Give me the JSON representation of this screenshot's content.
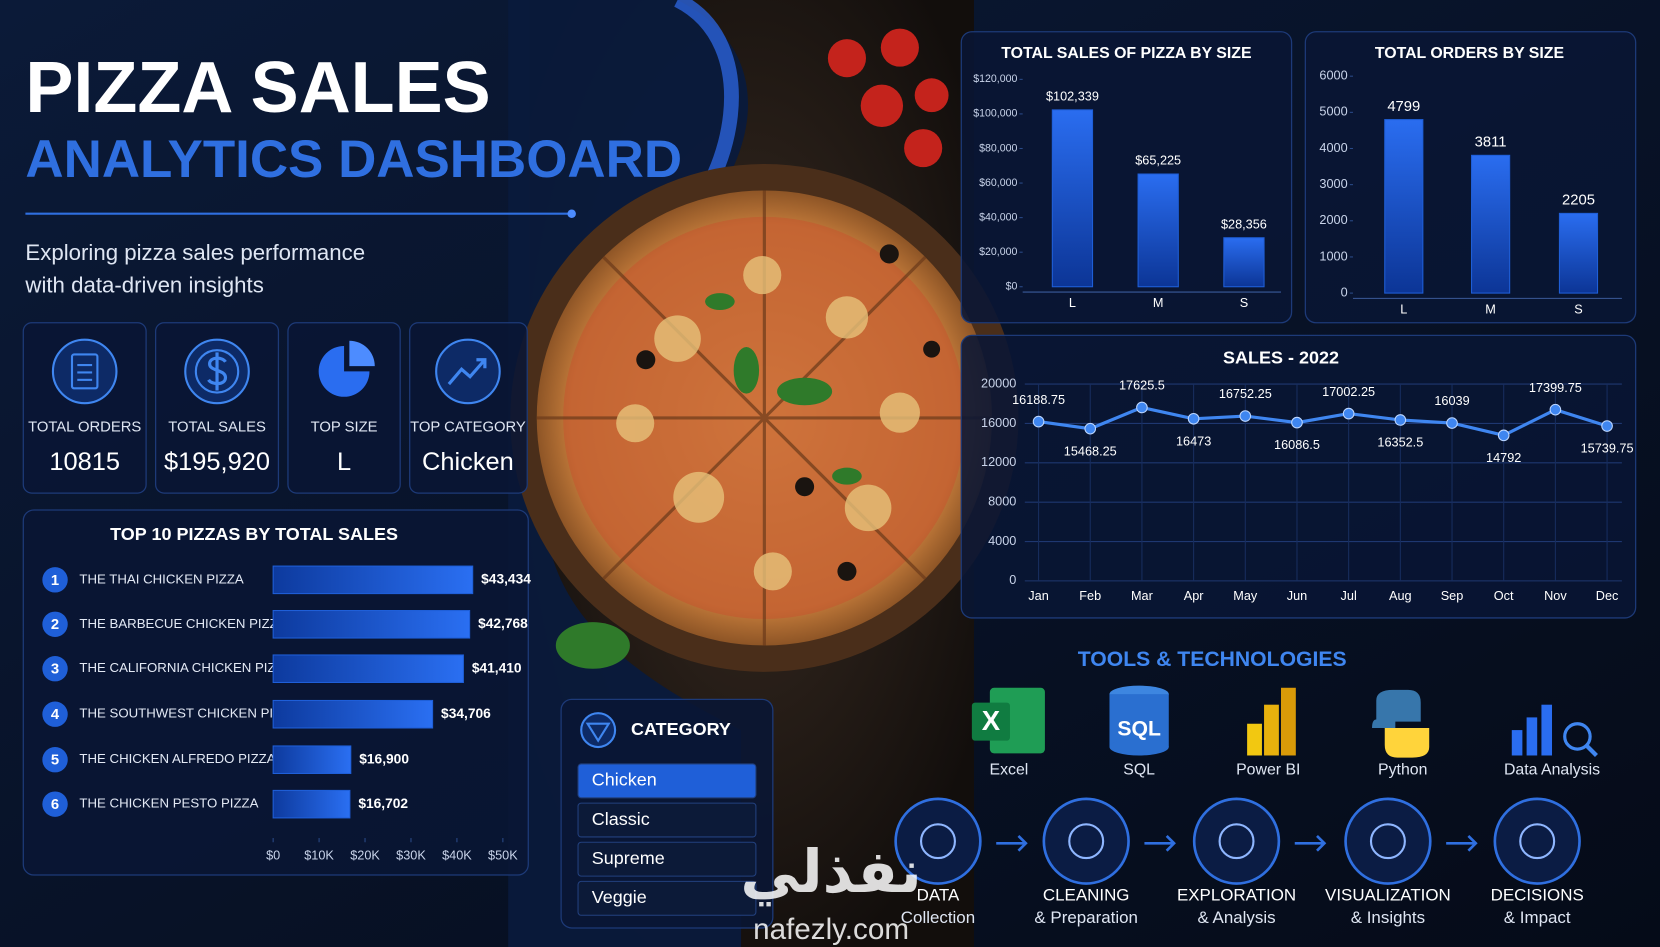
{
  "header": {
    "title": "PIZZA SALES",
    "subtitle": "ANALYTICS DASHBOARD",
    "description": [
      "Exploring pizza sales performance",
      "with data-driven insights"
    ]
  },
  "kpis": [
    {
      "label": "TOTAL ORDERS",
      "value": "10815"
    },
    {
      "label": "TOTAL SALES",
      "value": "$195,920"
    },
    {
      "label": "TOP SIZE",
      "value": "L"
    },
    {
      "label": "TOP CATEGORY",
      "value": "Chicken"
    }
  ],
  "chart_data": [
    {
      "type": "bar",
      "title": "TOTAL SALES OF PIZZA BY SIZE",
      "categories": [
        "L",
        "M",
        "S"
      ],
      "values": [
        102339,
        65225,
        28356
      ],
      "value_labels": [
        "$102,339",
        "$65,225",
        "$28,356"
      ],
      "color": "#1f5fd8",
      "ylim": [
        0,
        120000
      ],
      "yticks": [
        {
          "value": 0,
          "label": "$0"
        },
        {
          "value": 20000,
          "label": "$20,000"
        },
        {
          "value": 40000,
          "label": "$40,000"
        },
        {
          "value": 60000,
          "label": "$60,000"
        },
        {
          "value": 80000,
          "label": "$80,000"
        },
        {
          "value": 100000,
          "label": "$100,000"
        },
        {
          "value": 120000,
          "label": "$120,000"
        }
      ]
    },
    {
      "type": "bar",
      "title": "TOTAL ORDERS BY SIZE",
      "categories": [
        "L",
        "M",
        "S"
      ],
      "values": [
        4799,
        3811,
        2205
      ],
      "color": "#1f5fd8",
      "ylim": [
        0,
        6000
      ],
      "yticks": [
        0,
        1000,
        2000,
        3000,
        4000,
        5000,
        6000
      ]
    },
    {
      "type": "line",
      "title": "SALES - 2022",
      "categories": [
        "Jan",
        "Feb",
        "Mar",
        "Apr",
        "May",
        "Jun",
        "Jul",
        "Aug",
        "Sep",
        "Oct",
        "Nov",
        "Dec"
      ],
      "values": [
        16188.75,
        15468.25,
        17625.5,
        16473,
        16752.25,
        16086.5,
        17002.25,
        16352.5,
        16039,
        14792,
        17399.75,
        15739.75
      ],
      "color": "#3f86f0",
      "ylim": [
        0,
        20000
      ],
      "yticks": [
        0,
        4000,
        8000,
        12000,
        16000,
        20000
      ],
      "grid": true
    },
    {
      "type": "barh",
      "title": "TOP 10 PIZZAS BY TOTAL SALES",
      "ranks": [
        1,
        2,
        3,
        4,
        5,
        6
      ],
      "categories": [
        "THE THAI CHICKEN PIZZA",
        "THE BARBECUE CHICKEN PIZZA",
        "THE CALIFORNIA CHICKEN PIZZA",
        "THE SOUTHWEST CHICKEN PIZZA",
        "THE CHICKEN ALFREDO PIZZA",
        "THE CHICKEN PESTO PIZZA"
      ],
      "values": [
        43434,
        42768,
        41410,
        34706,
        16900,
        16702
      ],
      "value_labels": [
        "$43,434",
        "$42,768",
        "$41,410",
        "$34,706",
        "$16,900",
        "$16,702"
      ],
      "color": "#1f5fd8",
      "xlim": [
        0,
        50000
      ],
      "xticks": [
        {
          "value": 0,
          "label": "$0"
        },
        {
          "value": 10000,
          "label": "$10K"
        },
        {
          "value": 20000,
          "label": "$20K"
        },
        {
          "value": 30000,
          "label": "$30K"
        },
        {
          "value": 40000,
          "label": "$40K"
        },
        {
          "value": 50000,
          "label": "$50K"
        }
      ]
    }
  ],
  "category_filter": {
    "title": "CATEGORY",
    "options": [
      "Chicken",
      "Classic",
      "Supreme",
      "Veggie"
    ]
  },
  "tools": {
    "title": "TOOLS & TECHNOLOGIES",
    "items": [
      {
        "name": "Excel",
        "badge": "X"
      },
      {
        "name": "SQL",
        "badge": "SQL"
      },
      {
        "name": "Power BI"
      },
      {
        "name": "Python"
      },
      {
        "name": "Data Analysis"
      }
    ]
  },
  "process": [
    {
      "title": "DATA",
      "subtitle": "Collection"
    },
    {
      "title": "CLEANING",
      "subtitle": "& Preparation"
    },
    {
      "title": "EXPLORATION",
      "subtitle": "& Analysis"
    },
    {
      "title": "VISUALIZATION",
      "subtitle": "& Insights"
    },
    {
      "title": "DECISIONS",
      "subtitle": "& Impact"
    }
  ],
  "watermark": {
    "brand": "نفذلي",
    "url": "nafezly.com"
  }
}
